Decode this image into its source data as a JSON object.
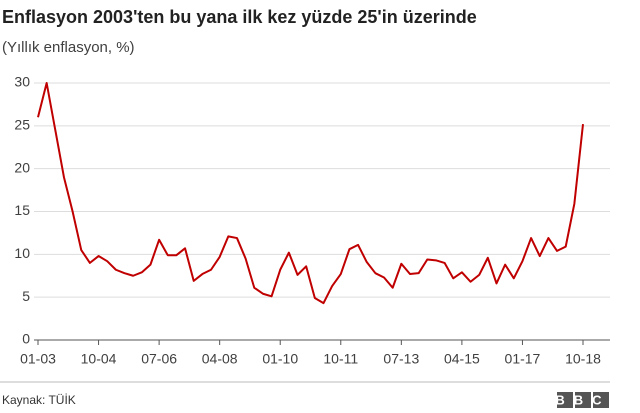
{
  "chart_data": {
    "type": "line",
    "title": "Enflasyon 2003'ten bu yana ilk kez yüzde 25'in üzerinde",
    "subtitle": "(Yıllık enflasyon, %)",
    "source": "Kaynak: TÜİK",
    "logo": "BBC",
    "categories": [
      "01-03",
      null,
      null,
      null,
      null,
      null,
      null,
      "10-04",
      null,
      null,
      null,
      null,
      null,
      null,
      "07-06",
      null,
      null,
      null,
      null,
      null,
      null,
      "04-08",
      null,
      null,
      null,
      null,
      null,
      null,
      "01-10",
      null,
      null,
      null,
      null,
      null,
      null,
      "10-11",
      null,
      null,
      null,
      null,
      null,
      null,
      "07-13",
      null,
      null,
      null,
      null,
      null,
      null,
      "04-15",
      null,
      null,
      null,
      null,
      null,
      null,
      "01-17",
      null,
      null,
      null,
      null,
      null,
      null,
      "10-18"
    ],
    "values": [
      26,
      30,
      24.5,
      19,
      15,
      10.5,
      9,
      9.8,
      9.2,
      8.2,
      7.8,
      7.5,
      7.9,
      8.8,
      11.7,
      9.9,
      9.9,
      10.7,
      6.9,
      7.7,
      8.2,
      9.7,
      12.1,
      11.9,
      9.5,
      6.1,
      5.4,
      5.1,
      8.2,
      10.2,
      7.6,
      8.6,
      4.9,
      4.3,
      6.3,
      7.7,
      10.6,
      11.1,
      9.1,
      7.8,
      7.3,
      6.1,
      8.9,
      7.7,
      7.8,
      9.4,
      9.3,
      9.0,
      7.2,
      7.9,
      6.8,
      7.6,
      9.6,
      6.6,
      8.8,
      7.2,
      9.2,
      11.9,
      9.8,
      11.9,
      10.4,
      10.9,
      15.9,
      25.2
    ],
    "color": "#c00000",
    "ylim": [
      0,
      30
    ],
    "yticks": [
      0,
      5,
      10,
      15,
      20,
      25,
      30
    ],
    "grid": true
  }
}
